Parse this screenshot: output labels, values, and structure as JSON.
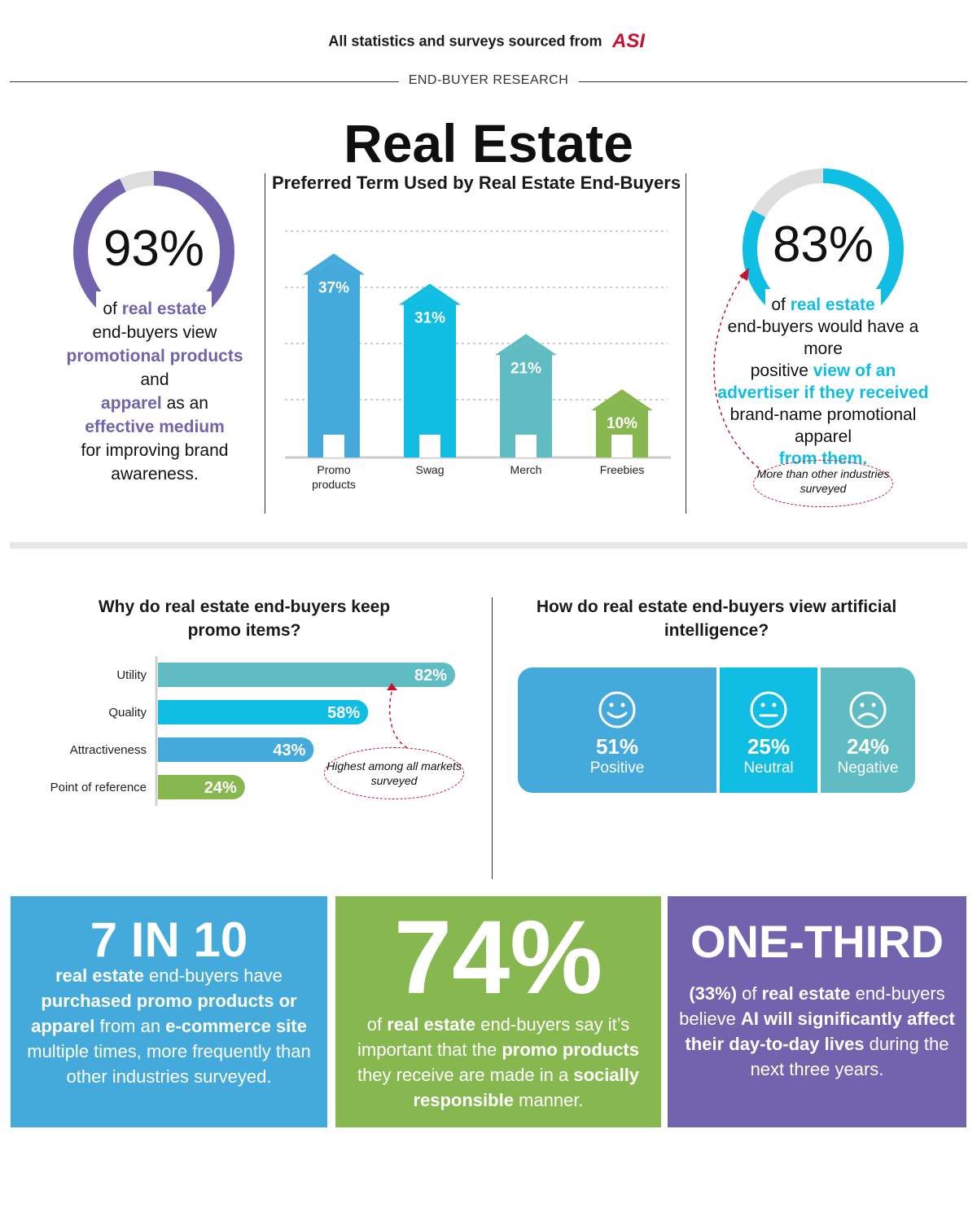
{
  "source": {
    "text": "All statistics and surveys sourced from",
    "logo_text": "ASI"
  },
  "eyebrow": "END-BUYER RESEARCH",
  "title": "Real Estate",
  "colors": {
    "purple": "#7163ad",
    "cyan": "#10bde3",
    "blue": "#44aadc",
    "teal": "#5fbcc3",
    "green": "#86b84f",
    "red": "#c8102e"
  },
  "left_stat": {
    "value": "93%",
    "fraction": 0.93,
    "text": [
      "of ",
      "real estate",
      " end-buyers view ",
      "promotional products",
      " and ",
      "apparel",
      " as an ",
      "effective medium",
      " for improving brand awareness."
    ]
  },
  "right_stat": {
    "value": "83%",
    "fraction": 0.83,
    "text": [
      "of ",
      "real estate",
      " end-buyers would have a more ",
      "positive",
      " view of an advertiser if they received ",
      "brand-name promotional apparel",
      " from them."
    ],
    "note": "More than other industries surveyed"
  },
  "chart_data": [
    {
      "type": "bar",
      "title": "Preferred Term Used by Real Estate End-Buyers",
      "categories": [
        "Promo products",
        "Swag",
        "Merch",
        "Freebies"
      ],
      "values": [
        37,
        31,
        21,
        10
      ],
      "labels": [
        "37%",
        "31%",
        "21%",
        "10%"
      ],
      "colors": [
        "#44aadc",
        "#10bde3",
        "#5fbcc3",
        "#86b84f"
      ],
      "ylim": [
        0,
        45
      ],
      "grid": true
    },
    {
      "type": "bar",
      "orientation": "horizontal",
      "title": "Why do real estate end-buyers keep promo items?",
      "categories": [
        "Utility",
        "Quality",
        "Attractiveness",
        "Point of reference"
      ],
      "values": [
        82,
        58,
        43,
        24
      ],
      "labels": [
        "82%",
        "58%",
        "43%",
        "24%"
      ],
      "colors": [
        "#5fbcc3",
        "#10bde3",
        "#44aadc",
        "#86b84f"
      ],
      "xlim": [
        0,
        82
      ],
      "annotation": "Highest among all markets surveyed"
    },
    {
      "type": "bar",
      "orientation": "stacked-horizontal",
      "title": "How do real estate end-buyers view artificial intelligence?",
      "categories": [
        "Positive",
        "Neutral",
        "Negative"
      ],
      "values": [
        51,
        25,
        24
      ],
      "labels": [
        "51%",
        "25%",
        "24%"
      ],
      "icons": [
        "smile-icon",
        "neutral-face-icon",
        "frown-icon"
      ],
      "colors": [
        "#44aadc",
        "#10bde3",
        "#5fbcc3"
      ]
    }
  ],
  "panels": [
    {
      "headline": "7 IN 10",
      "color": "#44aadc",
      "html": "<b>real estate</b> end-buyers have <b>purchased promo products or apparel</b> from an <b>e-commerce site</b> multiple times, more frequently than other industries surveyed."
    },
    {
      "headline": "74%",
      "color": "#86b84f",
      "html": "of <b>real estate</b> end-buyers say it’s important that the <b>promo products</b> they receive are made in a <b>socially responsible</b> manner."
    },
    {
      "headline": "ONE-THIRD",
      "color": "#7163ad",
      "html": "<b>(33%)</b> of <b>real estate</b> end-buyers believe <b>AI will significantly affect their day-to-day lives</b> during the next three years."
    }
  ]
}
